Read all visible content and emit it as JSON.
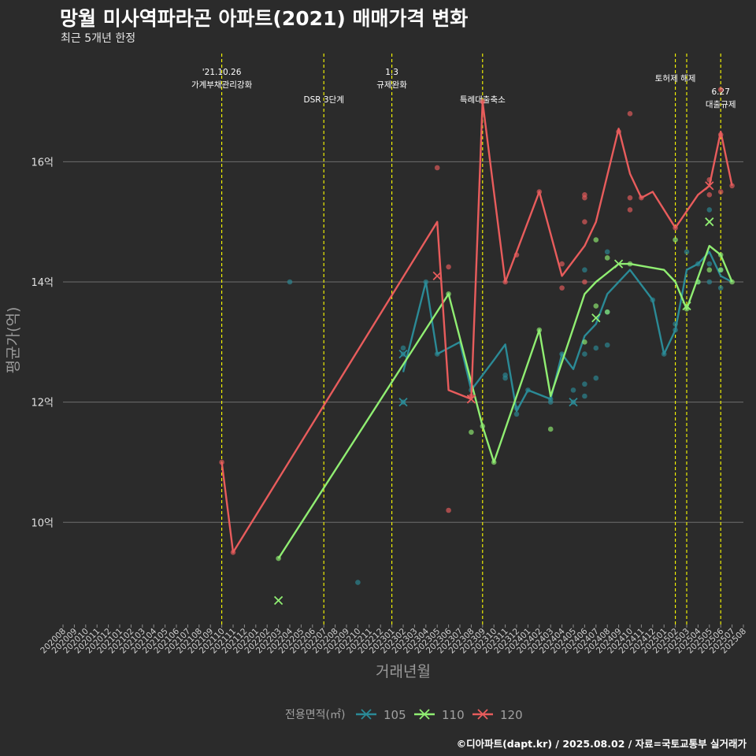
{
  "title": "망월 미사역파라곤 아파트(2021) 매매가격 변화",
  "subtitle": "최근 5개년 한정",
  "caption": "©디아파트(dapt.kr) / 2025.08.02 / 자료=국토교통부 실거래가",
  "chart_data": {
    "type": "line",
    "xlabel": "거래년월",
    "ylabel": "평균가(억)",
    "ylim": [
      8.3,
      17.8
    ],
    "y_ticks": [
      10,
      12,
      14,
      16
    ],
    "y_tick_labels": [
      "10억",
      "12억",
      "14억",
      "16억"
    ],
    "grid": true,
    "x_categories": [
      "202008",
      "202009",
      "202010",
      "202011",
      "202012",
      "202101",
      "202102",
      "202103",
      "202104",
      "202105",
      "202106",
      "202107",
      "202108",
      "202109",
      "202110",
      "202111",
      "202112",
      "202201",
      "202202",
      "202203",
      "202204",
      "202205",
      "202206",
      "202207",
      "202208",
      "202209",
      "202210",
      "202211",
      "202212",
      "202301",
      "202302",
      "202303",
      "202304",
      "202305",
      "202306",
      "202307",
      "202308",
      "202309",
      "202310",
      "202311",
      "202312",
      "202401",
      "202402",
      "202403",
      "202404",
      "202405",
      "202406",
      "202407",
      "202408",
      "202409",
      "202410",
      "202411",
      "202412",
      "202501",
      "202502",
      "202503",
      "202504",
      "202505",
      "202506",
      "202507",
      "202508"
    ],
    "legend": {
      "title": "전용면적(㎡)",
      "position": "bottom"
    },
    "series": [
      {
        "name": "105",
        "color": "#2b8a96",
        "line": [
          [
            "202302",
            12.5
          ],
          [
            "202304",
            14.0
          ],
          [
            "202305",
            12.8
          ],
          [
            "202307",
            13.0
          ],
          [
            "202308",
            12.2
          ],
          [
            "202310",
            12.7
          ],
          [
            "202311",
            12.96
          ],
          [
            "202312",
            11.85
          ],
          [
            "202401",
            12.2
          ],
          [
            "202403",
            12.05
          ],
          [
            "202404",
            12.8
          ],
          [
            "202405",
            12.55
          ],
          [
            "202406",
            13.1
          ],
          [
            "202407",
            13.3
          ],
          [
            "202408",
            13.8
          ],
          [
            "202410",
            14.2
          ],
          [
            "202412",
            13.7
          ],
          [
            "202501",
            12.8
          ],
          [
            "202502",
            13.2
          ],
          [
            "202503",
            14.2
          ],
          [
            "202504",
            14.3
          ],
          [
            "202505",
            14.5
          ],
          [
            "202506",
            14.1
          ],
          [
            "202507",
            14.0
          ]
        ],
        "points": [
          [
            "202204",
            14.0
          ],
          [
            "202210",
            9.0
          ],
          [
            "202302",
            12.9
          ],
          [
            "202302",
            12.8
          ],
          [
            "202302",
            12.0
          ],
          [
            "202304",
            14.0
          ],
          [
            "202305",
            12.8
          ],
          [
            "202308",
            12.2
          ],
          [
            "202311",
            12.4
          ],
          [
            "202311",
            12.45
          ],
          [
            "202312",
            11.8
          ],
          [
            "202312",
            11.9
          ],
          [
            "202401",
            12.2
          ],
          [
            "202403",
            12.05
          ],
          [
            "202403",
            12.0
          ],
          [
            "202404",
            12.8
          ],
          [
            "202405",
            12.2
          ],
          [
            "202405",
            12.0
          ],
          [
            "202406",
            12.3
          ],
          [
            "202406",
            12.1
          ],
          [
            "202406",
            12.8
          ],
          [
            "202406",
            14.2
          ],
          [
            "202407",
            12.9
          ],
          [
            "202407",
            12.4
          ],
          [
            "202408",
            14.5
          ],
          [
            "202408",
            13.5
          ],
          [
            "202408",
            12.95
          ],
          [
            "202412",
            13.7
          ],
          [
            "202501",
            12.8
          ],
          [
            "202502",
            13.3
          ],
          [
            "202502",
            13.2
          ],
          [
            "202503",
            14.5
          ],
          [
            "202504",
            14.3
          ],
          [
            "202504",
            14.0
          ],
          [
            "202505",
            15.2
          ],
          [
            "202505",
            14.3
          ],
          [
            "202505",
            14.0
          ],
          [
            "202506",
            14.2
          ],
          [
            "202506",
            13.9
          ]
        ],
        "markers": [
          [
            "202302",
            12.8
          ],
          [
            "202302",
            12.0
          ],
          [
            "202405",
            12.0
          ]
        ]
      },
      {
        "name": "110",
        "color": "#90ee72",
        "line": [
          [
            "202203",
            9.4
          ],
          [
            "202306",
            13.8
          ],
          [
            "202309",
            11.6
          ],
          [
            "202310",
            11.0
          ],
          [
            "202402",
            13.2
          ],
          [
            "202403",
            12.1
          ],
          [
            "202406",
            13.8
          ],
          [
            "202407",
            14.0
          ],
          [
            "202409",
            14.3
          ],
          [
            "202410",
            14.3
          ],
          [
            "202501",
            14.2
          ],
          [
            "202502",
            14.0
          ],
          [
            "202503",
            13.55
          ],
          [
            "202505",
            14.6
          ],
          [
            "202506",
            14.45
          ],
          [
            "202507",
            14.0
          ]
        ],
        "points": [
          [
            "202203",
            9.4
          ],
          [
            "202306",
            13.8
          ],
          [
            "202308",
            11.5
          ],
          [
            "202309",
            11.6
          ],
          [
            "202310",
            11.0
          ],
          [
            "202402",
            13.2
          ],
          [
            "202403",
            11.55
          ],
          [
            "202406",
            13.0
          ],
          [
            "202407",
            14.7
          ],
          [
            "202407",
            13.6
          ],
          [
            "202408",
            14.4
          ],
          [
            "202408",
            13.5
          ],
          [
            "202410",
            14.3
          ],
          [
            "202502",
            14.7
          ],
          [
            "202503",
            13.55
          ],
          [
            "202504",
            14.0
          ],
          [
            "202505",
            14.2
          ],
          [
            "202506",
            14.45
          ],
          [
            "202506",
            14.2
          ],
          [
            "202507",
            14.0
          ]
        ],
        "markers": [
          [
            "202203",
            8.7
          ],
          [
            "202407",
            13.4
          ],
          [
            "202409",
            14.3
          ],
          [
            "202503",
            13.6
          ],
          [
            "202505",
            15.0
          ]
        ]
      },
      {
        "name": "120",
        "color": "#e85c5c",
        "line": [
          [
            "202110",
            11.0
          ],
          [
            "202111",
            9.5
          ],
          [
            "202305",
            15.0
          ],
          [
            "202306",
            12.2
          ],
          [
            "202308",
            12.05
          ],
          [
            "202309",
            17.0
          ],
          [
            "202311",
            14.0
          ],
          [
            "202312",
            14.5
          ],
          [
            "202402",
            15.5
          ],
          [
            "202404",
            14.1
          ],
          [
            "202406",
            14.6
          ],
          [
            "202407",
            15.0
          ],
          [
            "202409",
            16.55
          ],
          [
            "202410",
            15.8
          ],
          [
            "202411",
            15.4
          ],
          [
            "202412",
            15.5
          ],
          [
            "202502",
            14.9
          ],
          [
            "202504",
            15.45
          ],
          [
            "202505",
            15.6
          ],
          [
            "202506",
            16.5
          ],
          [
            "202507",
            15.6
          ]
        ],
        "points": [
          [
            "202110",
            11.0
          ],
          [
            "202111",
            9.5
          ],
          [
            "202305",
            15.9
          ],
          [
            "202306",
            14.25
          ],
          [
            "202306",
            10.2
          ],
          [
            "202308",
            12.1
          ],
          [
            "202309",
            17.0
          ],
          [
            "202311",
            14.0
          ],
          [
            "202312",
            14.45
          ],
          [
            "202402",
            15.5
          ],
          [
            "202404",
            14.3
          ],
          [
            "202404",
            13.9
          ],
          [
            "202406",
            15.45
          ],
          [
            "202406",
            15.4
          ],
          [
            "202406",
            15.0
          ],
          [
            "202406",
            14.0
          ],
          [
            "202409",
            16.5
          ],
          [
            "202410",
            16.8
          ],
          [
            "202410",
            15.4
          ],
          [
            "202410",
            15.2
          ],
          [
            "202411",
            15.4
          ],
          [
            "202502",
            14.9
          ],
          [
            "202505",
            15.7
          ],
          [
            "202505",
            15.45
          ],
          [
            "202506",
            17.2
          ],
          [
            "202506",
            16.45
          ],
          [
            "202506",
            15.5
          ],
          [
            "202507",
            15.6
          ]
        ],
        "markers": [
          [
            "202305",
            14.1
          ],
          [
            "202308",
            12.05
          ],
          [
            "202505",
            15.6
          ]
        ]
      }
    ],
    "annotations": [
      {
        "x": "202110",
        "lines": [
          "'21.10.26",
          "가계부채관리강화"
        ],
        "row": 1
      },
      {
        "x": "202207",
        "lines": [
          "DSR 3단계"
        ],
        "row": 3
      },
      {
        "x": "202301",
        "lines": [
          "1.3",
          "규제완화"
        ],
        "row": 1
      },
      {
        "x": "202309",
        "lines": [
          "특례대출축소"
        ],
        "row": 3
      },
      {
        "x": "202502",
        "lines": [
          "토허제 해제"
        ],
        "row": 2
      },
      {
        "x": "202503",
        "lines": [],
        "row": 2
      },
      {
        "x": "202506",
        "lines": [
          "6.27",
          "대출규제"
        ],
        "row": 4
      }
    ],
    "vline_color": "#ffff00"
  }
}
